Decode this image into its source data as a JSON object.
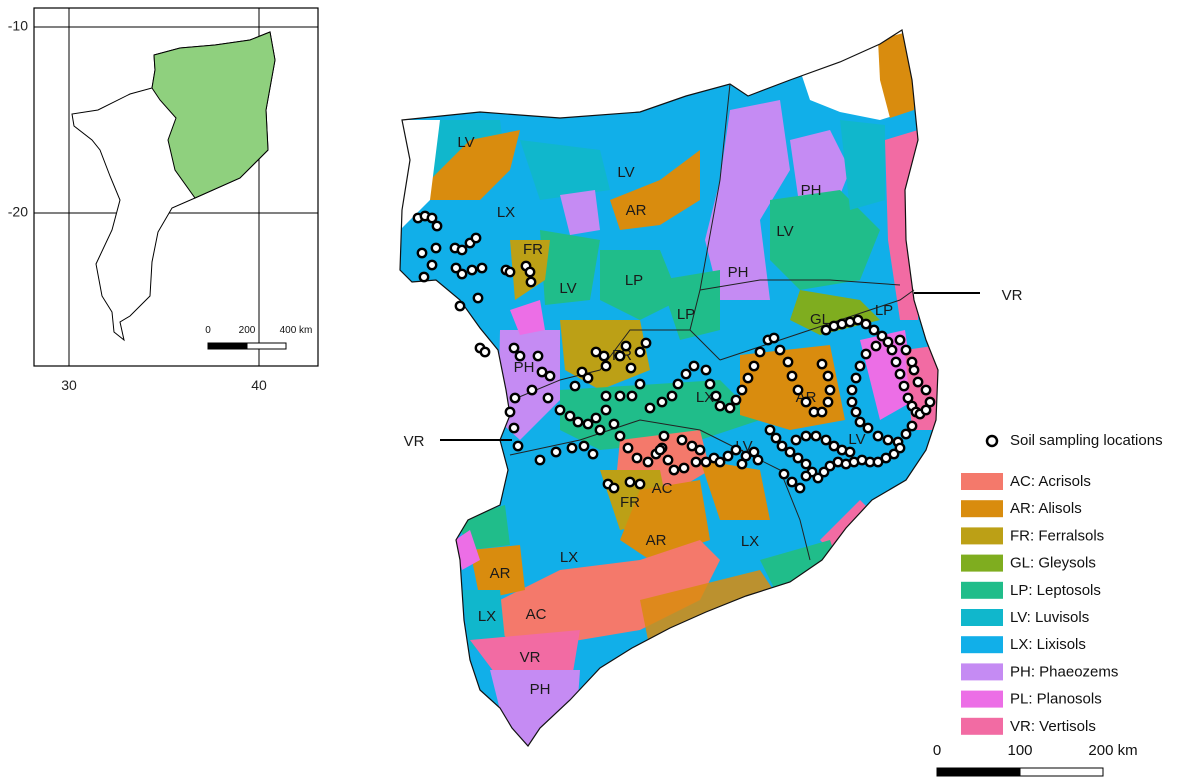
{
  "colors": {
    "AC": "#f4796b",
    "AR": "#d98c0e",
    "FR": "#bca016",
    "GL": "#7fad1f",
    "LP": "#20bd8a",
    "LV": "#10b7cc",
    "LX": "#11afe9",
    "PH": "#c58bf3",
    "PL": "#ec6ee6",
    "VR": "#f26ba3",
    "highlight": "#8fd07e"
  },
  "inset": {
    "y_ticks": [
      "-10",
      "-20"
    ],
    "x_ticks": [
      "30",
      "40"
    ],
    "scale_labels": [
      "0",
      "200",
      "400 km"
    ]
  },
  "map_labels": [
    {
      "id": "lv-nw",
      "text": "LV"
    },
    {
      "id": "lx-w",
      "text": "LX"
    },
    {
      "id": "lv-n",
      "text": "LV"
    },
    {
      "id": "ar-n",
      "text": "AR"
    },
    {
      "id": "fr-w",
      "text": "FR"
    },
    {
      "id": "lp-c",
      "text": "LP"
    },
    {
      "id": "lv-c",
      "text": "LV"
    },
    {
      "id": "lp-c2",
      "text": "LP"
    },
    {
      "id": "ph-ne",
      "text": "PH"
    },
    {
      "id": "lv-ne",
      "text": "LV"
    },
    {
      "id": "ph-e",
      "text": "PH"
    },
    {
      "id": "lp-e",
      "text": "LP"
    },
    {
      "id": "gl-e",
      "text": "GL"
    },
    {
      "id": "ph-w",
      "text": "PH"
    },
    {
      "id": "fr-c",
      "text": "FR"
    },
    {
      "id": "lx-c",
      "text": "LX"
    },
    {
      "id": "ar-e",
      "text": "AR"
    },
    {
      "id": "lv-se",
      "text": "LV"
    },
    {
      "id": "lv-s",
      "text": "LV"
    },
    {
      "id": "ac-c",
      "text": "AC"
    },
    {
      "id": "fr-s",
      "text": "FR"
    },
    {
      "id": "ar-s",
      "text": "AR"
    },
    {
      "id": "lx-s",
      "text": "LX"
    },
    {
      "id": "lx-se",
      "text": "LX"
    },
    {
      "id": "ar-sw",
      "text": "AR"
    },
    {
      "id": "lx-sw",
      "text": "LX"
    },
    {
      "id": "ac-sw",
      "text": "AC"
    },
    {
      "id": "vr-sw",
      "text": "VR"
    },
    {
      "id": "ph-sw",
      "text": "PH"
    }
  ],
  "callouts": [
    {
      "id": "vr-east",
      "text": "VR"
    },
    {
      "id": "vr-west",
      "text": "VR"
    }
  ],
  "legend": {
    "points_label": "Soil sampling locations",
    "items": [
      {
        "code": "AC",
        "label": "AC: Acrisols"
      },
      {
        "code": "AR",
        "label": "AR: Alisols"
      },
      {
        "code": "FR",
        "label": "FR: Ferralsols"
      },
      {
        "code": "GL",
        "label": "GL: Gleysols"
      },
      {
        "code": "LP",
        "label": "LP: Leptosols"
      },
      {
        "code": "LV",
        "label": "LV: Luvisols"
      },
      {
        "code": "LX",
        "label": "LX: Lixisols"
      },
      {
        "code": "PH",
        "label": "PH: Phaeozems"
      },
      {
        "code": "PL",
        "label": "PL: Planosols"
      },
      {
        "code": "VR",
        "label": "VR: Vertisols"
      }
    ]
  },
  "scale_bar": {
    "labels": [
      "0",
      "100",
      "200 km"
    ]
  }
}
